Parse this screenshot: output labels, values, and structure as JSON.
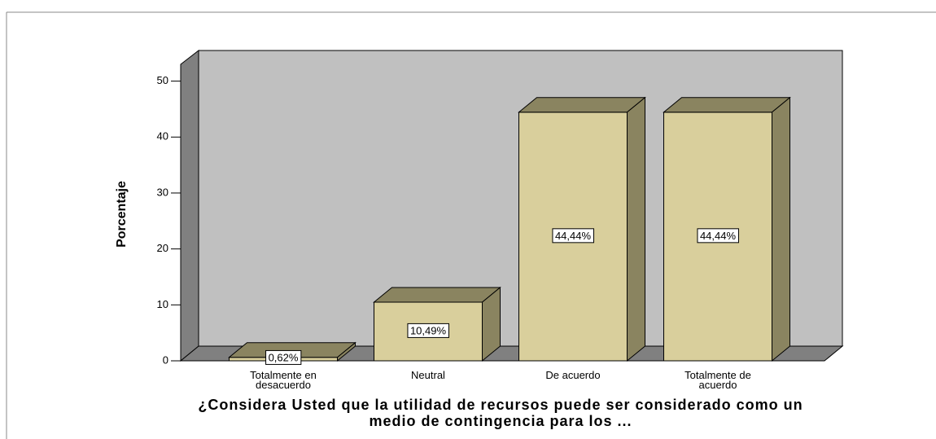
{
  "chart_data": {
    "type": "bar3d",
    "y_label": "Porcentaje",
    "x_label": "¿Considera Usted que la utilidad de recursos puede ser considerado como un medio de contingencia para los ...",
    "categories": [
      "Totalmente en desacuerdo",
      "Neutral",
      "De acuerdo",
      "Totalmente de acuerdo"
    ],
    "values": [
      0.62,
      10.49,
      44.44,
      44.44
    ],
    "value_labels": [
      "0,62%",
      "10,49%",
      "44,44%",
      "44,44%"
    ],
    "color": "#d9cf9c",
    "ylim": [
      0,
      53
    ],
    "yticks": [
      0,
      10,
      20,
      30,
      40,
      50
    ],
    "grid": false
  }
}
